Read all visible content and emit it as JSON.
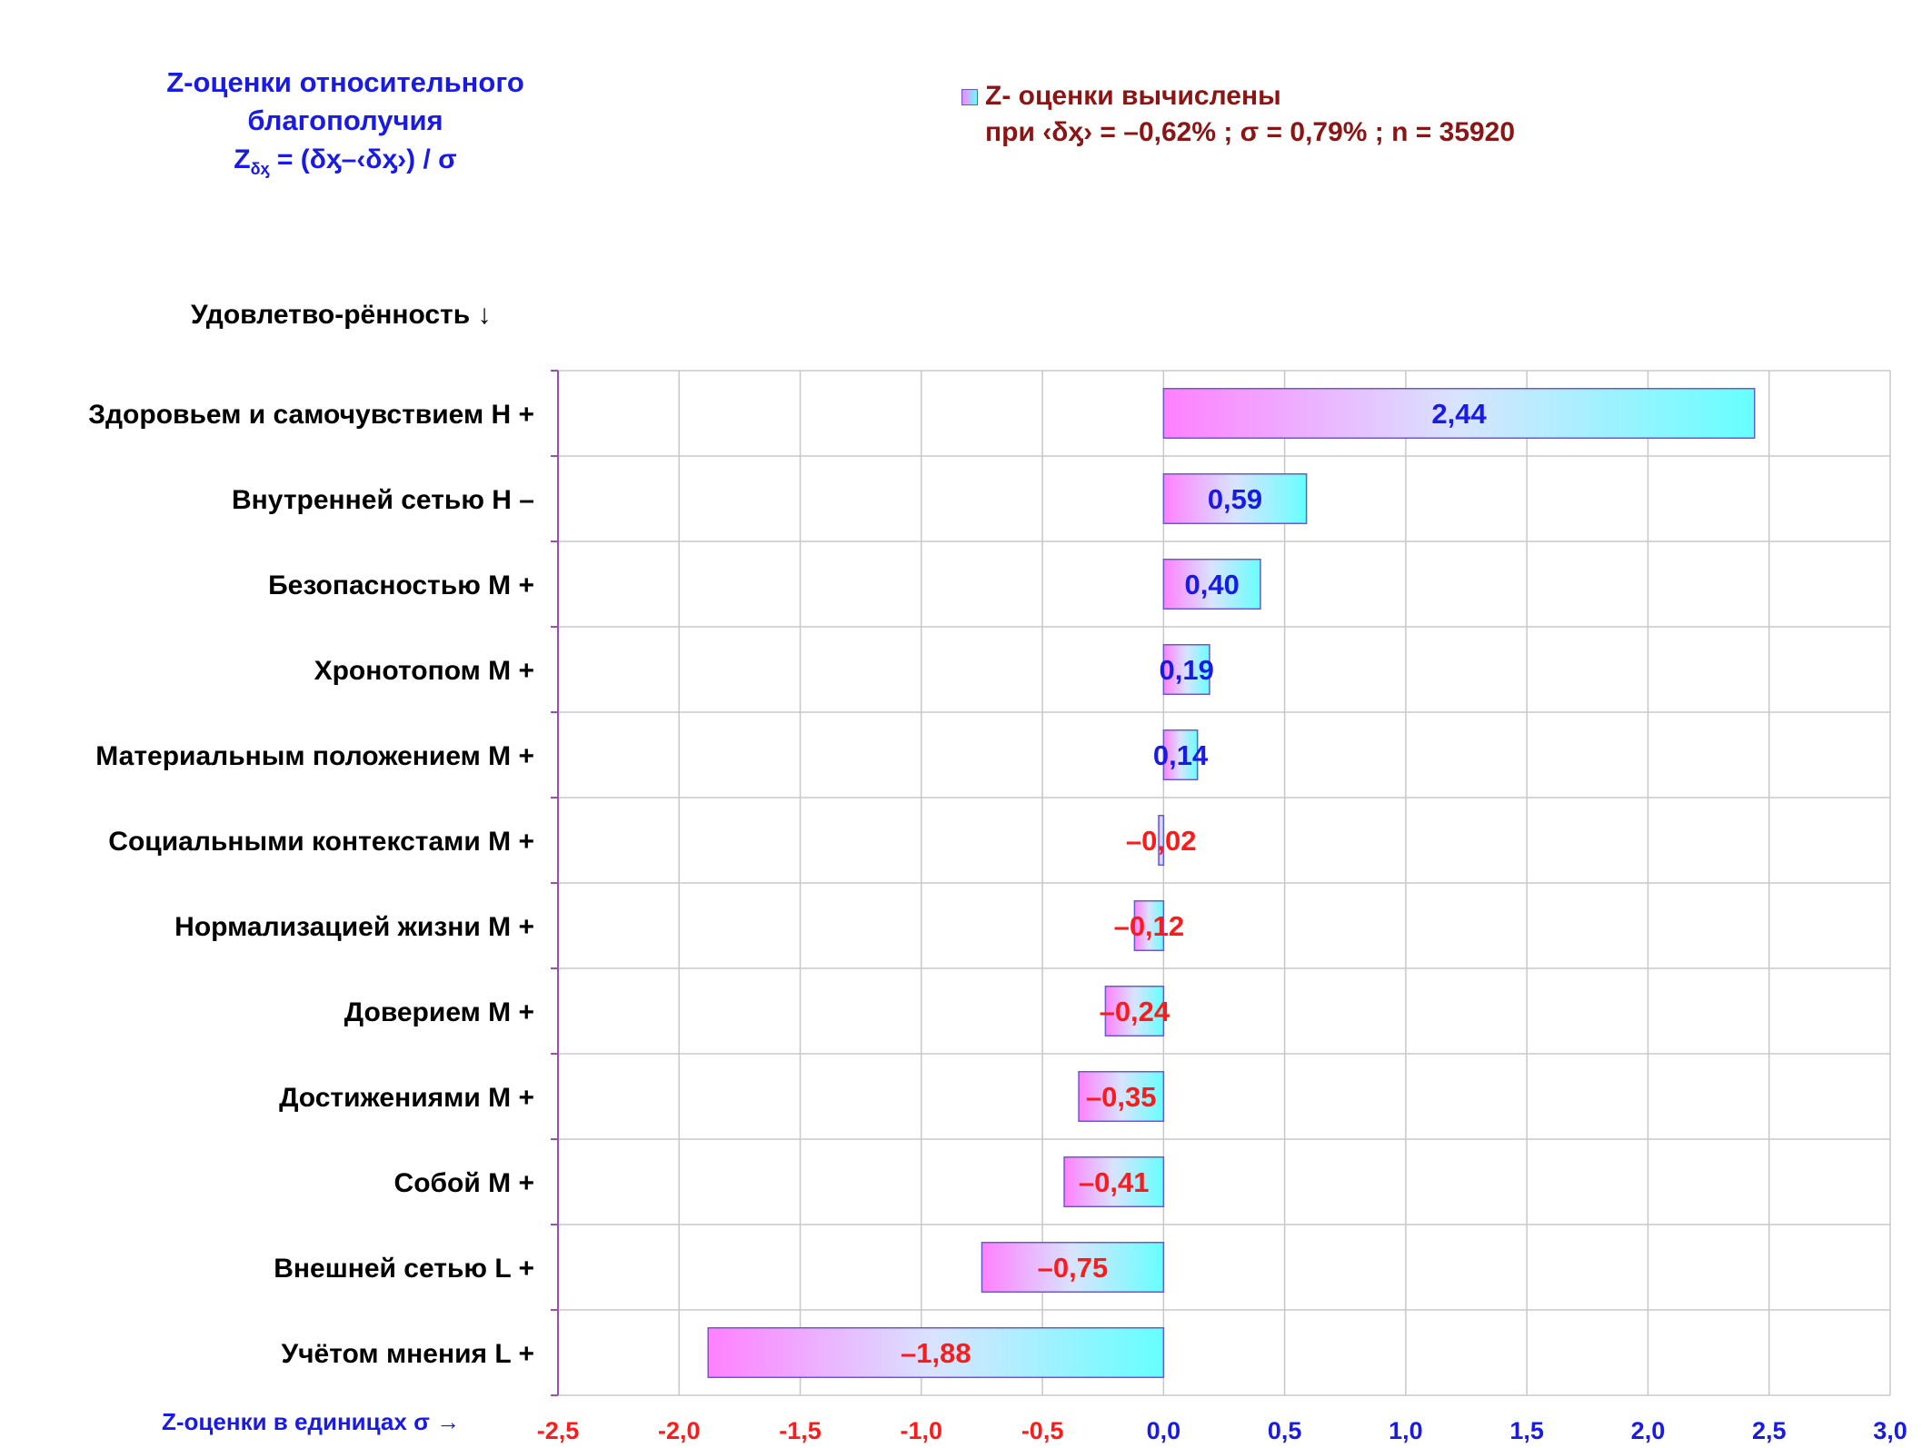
{
  "title": {
    "line1": "Z-оценки  относительного",
    "line2": "благополучия",
    "formula_z": "Z",
    "formula_sub": "δᶍ",
    "formula_rest": " = (δᶍ–‹δᶍ›)  / σ"
  },
  "legend": {
    "line1": "Z- оценки вычислены",
    "line2": "при ‹δᶍ› = –0,62% ; σ = 0,79% ; n = 35920"
  },
  "y_axis_label": "Удовлетво-рённость ↓",
  "x_axis_label": "Z-оценки в единицах σ →",
  "colors": {
    "positive_label": "#1a1ae6",
    "negative_label": "#ff1a1a",
    "bar_left": "#ff80ff",
    "bar_right": "#66ffff",
    "bar_border": "#6a5acd",
    "grid": "#c8c8c8",
    "axis": "#9a4fb0"
  },
  "chart_data": {
    "type": "bar",
    "orientation": "horizontal",
    "categories": [
      "Здоровьем и самочувствием  H +",
      "Внутренней сетью  H –",
      "Безопасностью  M +",
      "Хронотопом  M +",
      "Материальным положением  M +",
      "Социальными контекстами  M +",
      "Нормализацией жизни  M +",
      "Доверием  M +",
      "Достижениями  M +",
      "Собой  M +",
      "Внешней сетью  L +",
      "Учётом мнения  L +"
    ],
    "values": [
      2.44,
      0.59,
      0.4,
      0.19,
      0.14,
      -0.02,
      -0.12,
      -0.24,
      -0.35,
      -0.41,
      -0.75,
      -1.88
    ],
    "value_labels": [
      "2,44",
      "0,59",
      "0,40",
      "0,19",
      "0,14",
      "–0,02",
      "–0,12",
      "–0,24",
      "–0,35",
      "–0,41",
      "–0,75",
      "–1,88"
    ],
    "xlim": [
      -2.5,
      3.0
    ],
    "xticks": [
      -2.5,
      -2.0,
      -1.5,
      -1.0,
      -0.5,
      0.0,
      0.5,
      1.0,
      1.5,
      2.0,
      2.5,
      3.0
    ],
    "xtick_labels": [
      "-2,5",
      "-2,0",
      "-1,5",
      "-1,0",
      "-0,5",
      "0,0",
      "0,5",
      "1,0",
      "1,5",
      "2,0",
      "2,5",
      "3,0"
    ],
    "grid": true,
    "legend_position": "top-right"
  }
}
